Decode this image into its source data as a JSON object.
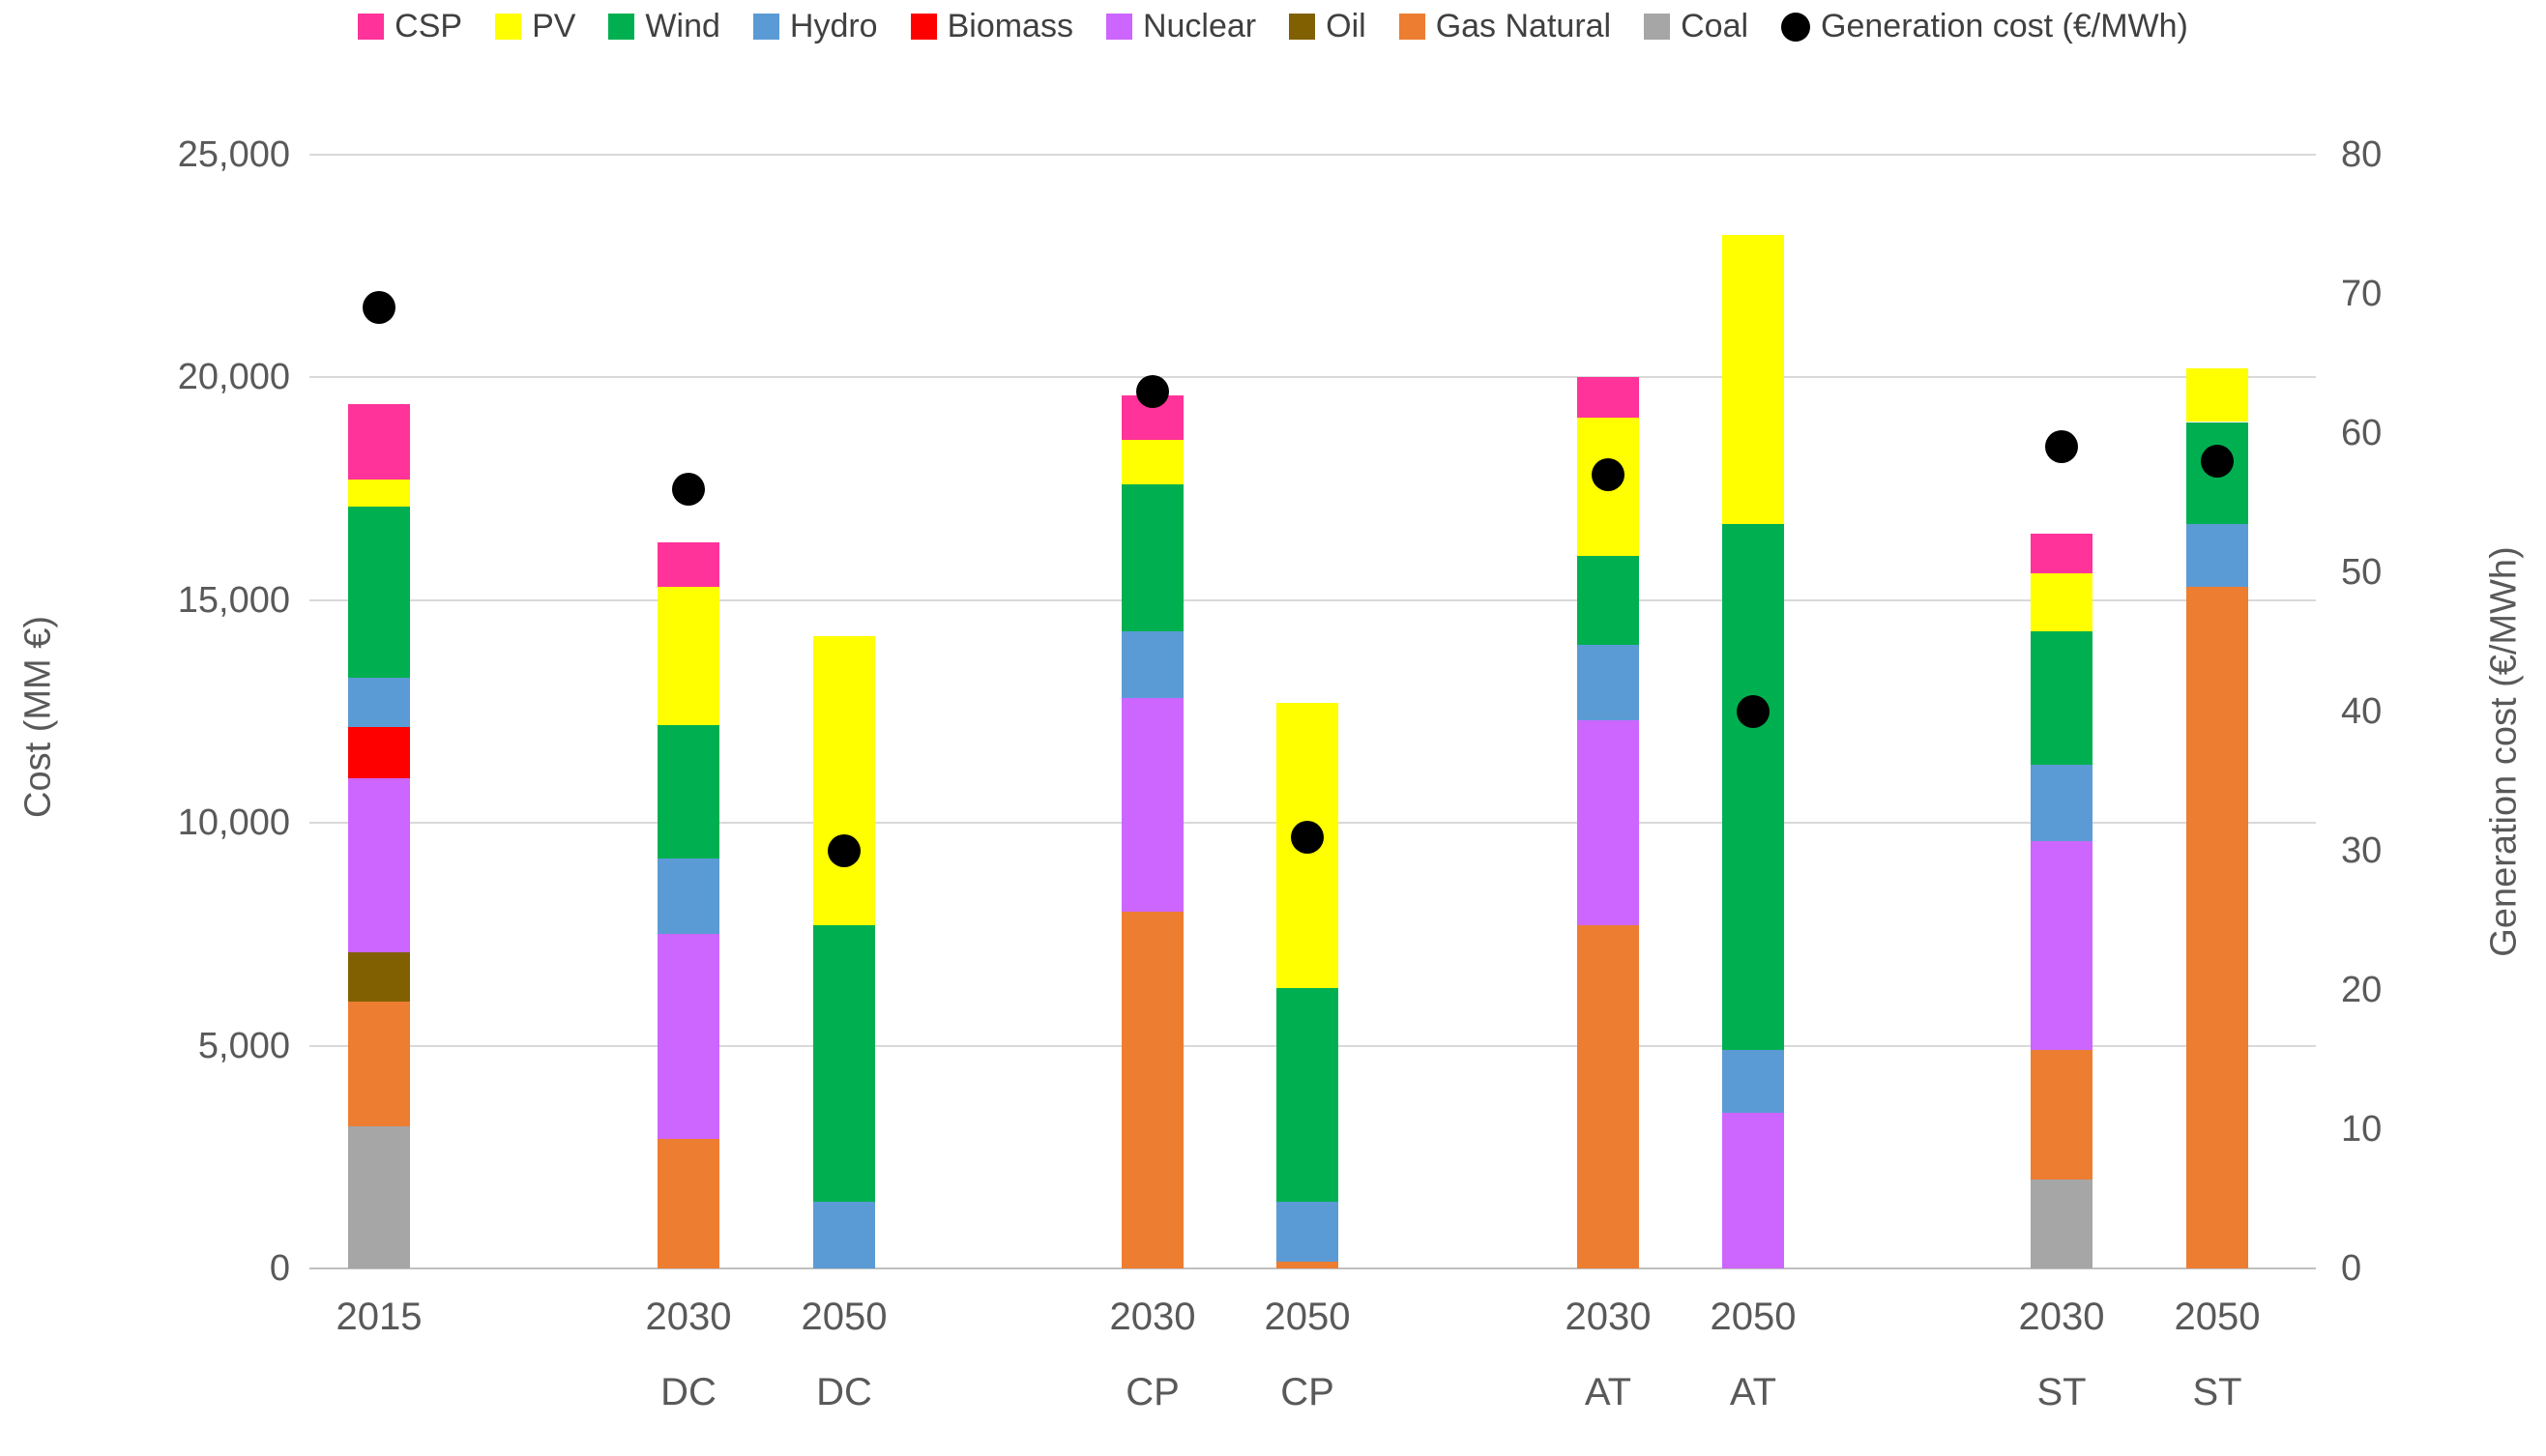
{
  "chart_data": {
    "type": "bar",
    "subtype": "stacked-columns-with-scatter-overlay",
    "title": "",
    "legend_position": "top",
    "grid": "horizontal",
    "categories": [
      {
        "year": "2015",
        "scenario": ""
      },
      {
        "year": "2030",
        "scenario": "DC"
      },
      {
        "year": "2050",
        "scenario": "DC"
      },
      {
        "year": "2030",
        "scenario": "CP"
      },
      {
        "year": "2050",
        "scenario": "CP"
      },
      {
        "year": "2030",
        "scenario": "AT"
      },
      {
        "year": "2050",
        "scenario": "AT"
      },
      {
        "year": "2030",
        "scenario": "ST"
      },
      {
        "year": "2050",
        "scenario": "ST"
      }
    ],
    "stack_order_bottom_to_top": [
      "Coal",
      "Gas Natural",
      "Oil",
      "Nuclear",
      "Biomass",
      "Hydro",
      "Wind",
      "PV",
      "CSP"
    ],
    "series": [
      {
        "name": "CSP",
        "color": "#FF3399",
        "values": [
          1700,
          1000,
          0,
          1000,
          0,
          900,
          0,
          900,
          0
        ]
      },
      {
        "name": "PV",
        "color": "#FFFF00",
        "values": [
          600,
          3100,
          6500,
          1000,
          6400,
          3100,
          6500,
          1300,
          1200
        ]
      },
      {
        "name": "Wind",
        "color": "#00B050",
        "values": [
          3850,
          3000,
          6200,
          3300,
          4800,
          2000,
          11800,
          3000,
          2300
        ]
      },
      {
        "name": "Hydro",
        "color": "#5B9BD5",
        "values": [
          1100,
          1700,
          1500,
          1500,
          1350,
          1700,
          1400,
          1700,
          1400
        ]
      },
      {
        "name": "Biomass",
        "color": "#FF0000",
        "values": [
          1150,
          0,
          0,
          0,
          0,
          0,
          0,
          0,
          0
        ]
      },
      {
        "name": "Nuclear",
        "color": "#CC66FF",
        "values": [
          3900,
          4600,
          0,
          4800,
          0,
          4600,
          3500,
          4700,
          0
        ]
      },
      {
        "name": "Oil",
        "color": "#806000",
        "values": [
          1100,
          0,
          0,
          0,
          0,
          0,
          0,
          0,
          0
        ]
      },
      {
        "name": "Gas Natural",
        "color": "#ED7D31",
        "values": [
          2800,
          2900,
          0,
          8000,
          150,
          7700,
          0,
          2900,
          15300
        ]
      },
      {
        "name": "Coal",
        "color": "#A6A6A6",
        "values": [
          3200,
          0,
          0,
          0,
          0,
          0,
          0,
          2000,
          0
        ]
      }
    ],
    "stack_totals": [
      19400,
      16300,
      14200,
      19600,
      12700,
      20000,
      23200,
      16500,
      20200
    ],
    "point_series": {
      "name": "Generation cost (€/MWh)",
      "color": "#000000",
      "values": [
        69,
        56,
        30,
        63,
        31,
        57,
        40,
        59,
        58
      ]
    },
    "left_axis": {
      "label": "Cost  (MM €)",
      "min": 0,
      "max": 25000,
      "tick_step": 5000,
      "ticks": [
        "0",
        "5,000",
        "10,000",
        "15,000",
        "20,000",
        "25,000"
      ]
    },
    "right_axis": {
      "label": "Generation cost (€/MWh)",
      "min": 0,
      "max": 80,
      "tick_step": 10,
      "ticks": [
        "0",
        "10",
        "20",
        "30",
        "40",
        "50",
        "60",
        "70",
        "80"
      ]
    }
  },
  "legend": {
    "items": [
      {
        "label": "CSP",
        "color": "#FF3399",
        "shape": "square"
      },
      {
        "label": "PV",
        "color": "#FFFF00",
        "shape": "square"
      },
      {
        "label": "Wind",
        "color": "#00B050",
        "shape": "square"
      },
      {
        "label": "Hydro",
        "color": "#5B9BD5",
        "shape": "square"
      },
      {
        "label": "Biomass",
        "color": "#FF0000",
        "shape": "square"
      },
      {
        "label": "Nuclear",
        "color": "#CC66FF",
        "shape": "square"
      },
      {
        "label": "Oil",
        "color": "#806000",
        "shape": "square"
      },
      {
        "label": "Gas Natural",
        "color": "#ED7D31",
        "shape": "square"
      },
      {
        "label": "Coal",
        "color": "#A6A6A6",
        "shape": "square"
      },
      {
        "label": "Generation cost (€/MWh)",
        "color": "#000000",
        "shape": "circle"
      }
    ]
  }
}
